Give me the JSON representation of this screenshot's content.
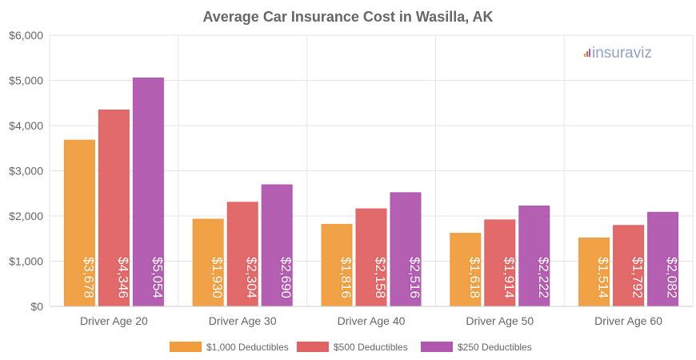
{
  "chart_data": {
    "type": "bar",
    "title": "Average Car Insurance Cost in Wasilla, AK",
    "categories": [
      "Driver Age 20",
      "Driver Age 30",
      "Driver Age 40",
      "Driver Age 50",
      "Driver Age 60"
    ],
    "series": [
      {
        "name": "$1,000 Deductibles",
        "color": "#f09c3c",
        "values": [
          3678,
          1930,
          1816,
          1618,
          1514
        ]
      },
      {
        "name": "$500 Deductibles",
        "color": "#e06262",
        "values": [
          4346,
          2304,
          2158,
          1914,
          1792
        ]
      },
      {
        "name": "$250 Deductibles",
        "color": "#b056ad",
        "values": [
          5054,
          2690,
          2516,
          2222,
          2082
        ]
      }
    ],
    "ylim": [
      0,
      6000
    ],
    "yticks": [
      "$0",
      "$1,000",
      "$2,000",
      "$3,000",
      "$4,000",
      "$5,000",
      "$6,000"
    ],
    "grid": true,
    "legend_position": "bottom"
  },
  "watermark": "insuraviz"
}
